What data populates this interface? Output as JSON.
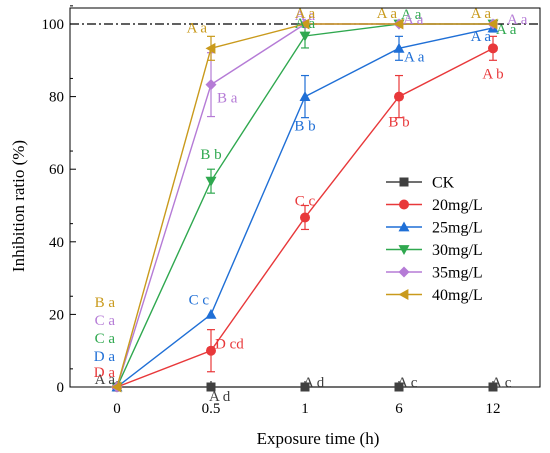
{
  "chart_data": {
    "type": "line",
    "xlabel": "Exposure time (h)",
    "ylabel": "Inhibition ratio (%)",
    "categories": [
      "0",
      "0.5",
      "1",
      "6",
      "12"
    ],
    "yticks": [
      "0",
      "20",
      "40",
      "60",
      "80",
      "100"
    ],
    "ylim": [
      0,
      100
    ],
    "reference_line": 100,
    "grid": false,
    "legend_position": "right",
    "series": [
      {
        "name": "CK",
        "color": "#404040",
        "marker": "square",
        "values": [
          0,
          0,
          0,
          0,
          0
        ],
        "errors": [
          0,
          0,
          0,
          0,
          0
        ],
        "labels": [
          "A a",
          "A d",
          "A d",
          "A c",
          "A c"
        ]
      },
      {
        "name": "20mg/L",
        "color": "#e8383a",
        "marker": "circle",
        "values": [
          0,
          10,
          46.7,
          80,
          93.3
        ],
        "errors": [
          0,
          5.8,
          3.3,
          5.8,
          3.3
        ],
        "labels": [
          "D a",
          "D cd",
          "C c",
          "B b",
          "A b"
        ]
      },
      {
        "name": "25mg/L",
        "color": "#1f6fd6",
        "marker": "triangle-up",
        "values": [
          0,
          20,
          80,
          93.3,
          98.9
        ],
        "errors": [
          0,
          0,
          5.8,
          3.3,
          1.1
        ],
        "labels": [
          "D a",
          "C c",
          "B b",
          "A a",
          "A a"
        ]
      },
      {
        "name": "30mg/L",
        "color": "#2fa84f",
        "marker": "triangle-down",
        "values": [
          0,
          56.7,
          96.7,
          100,
          100
        ],
        "errors": [
          0,
          3.3,
          3.3,
          0,
          0
        ],
        "labels": [
          "C a",
          "B b",
          "A a",
          "A a",
          "A a"
        ]
      },
      {
        "name": "35mg/L",
        "color": "#b57bd6",
        "marker": "diamond",
        "values": [
          0,
          83.3,
          100,
          100,
          100
        ],
        "errors": [
          0,
          8.8,
          0,
          0,
          0
        ],
        "labels": [
          "C a",
          "B a",
          "A a",
          "A a",
          "A a"
        ]
      },
      {
        "name": "40mg/L",
        "color": "#c99a1c",
        "marker": "triangle-left",
        "values": [
          0,
          93.3,
          100,
          100,
          100
        ],
        "errors": [
          0,
          3.3,
          0,
          0,
          0
        ],
        "labels": [
          "B a",
          "A a",
          "A a",
          "A a",
          "A a"
        ]
      }
    ]
  }
}
